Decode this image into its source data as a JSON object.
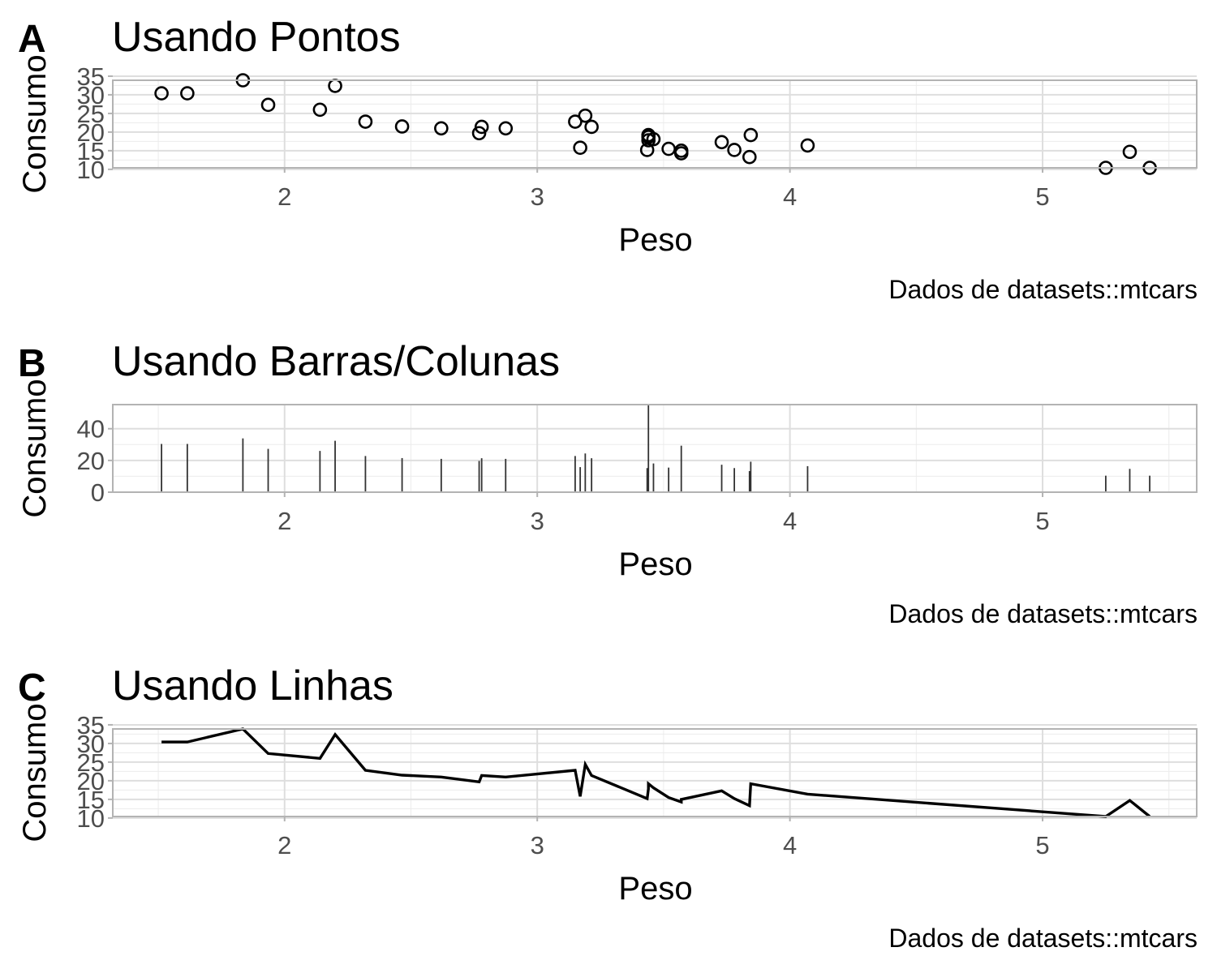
{
  "caption_text": "Dados de datasets::mtcars",
  "chart_data": [
    {
      "type": "scatter",
      "tag": "A",
      "title": "Usando Pontos",
      "xlabel": "Peso",
      "ylabel": "Consumo",
      "caption": "Dados de datasets::mtcars",
      "xlim": [
        1.32,
        5.61
      ],
      "ylim": [
        10.4,
        33.9
      ],
      "x_ticks": [
        2,
        3,
        4,
        5
      ],
      "y_ticks": [
        10,
        15,
        20,
        25,
        30,
        35
      ],
      "x": [
        2.62,
        2.875,
        2.32,
        3.215,
        3.44,
        3.46,
        3.57,
        3.19,
        3.15,
        3.44,
        3.44,
        4.07,
        3.73,
        3.78,
        5.25,
        5.424,
        5.345,
        2.2,
        1.615,
        1.835,
        2.465,
        3.52,
        3.435,
        3.84,
        3.845,
        1.935,
        2.14,
        1.513,
        3.17,
        2.77,
        3.57,
        2.78
      ],
      "y": [
        21.0,
        21.0,
        22.8,
        21.4,
        18.7,
        18.1,
        14.3,
        24.4,
        22.8,
        19.2,
        17.8,
        16.4,
        17.3,
        15.2,
        10.4,
        10.4,
        14.7,
        32.4,
        30.4,
        33.9,
        21.5,
        15.5,
        15.2,
        13.3,
        19.2,
        27.3,
        26.0,
        30.4,
        15.8,
        19.7,
        15.0,
        21.4
      ]
    },
    {
      "type": "bar",
      "tag": "B",
      "title": "Usando Barras/Colunas",
      "xlabel": "Peso",
      "ylabel": "Consumo",
      "caption": "Dados de datasets::mtcars",
      "xlim": [
        1.32,
        5.61
      ],
      "ylim": [
        0,
        55.2
      ],
      "x_ticks": [
        2,
        3,
        4,
        5
      ],
      "y_ticks": [
        0,
        20,
        40
      ],
      "x": [
        2.62,
        2.875,
        2.32,
        3.215,
        3.44,
        3.46,
        3.57,
        3.19,
        3.15,
        3.44,
        3.44,
        4.07,
        3.73,
        3.78,
        5.25,
        5.424,
        5.345,
        2.2,
        1.615,
        1.835,
        2.465,
        3.52,
        3.435,
        3.84,
        3.845,
        1.935,
        2.14,
        1.513,
        3.17,
        2.77,
        3.57,
        2.78
      ],
      "y": [
        21.0,
        21.0,
        22.8,
        21.4,
        18.7,
        18.1,
        14.3,
        24.4,
        22.8,
        19.2,
        17.8,
        16.4,
        17.3,
        15.2,
        10.4,
        10.4,
        14.7,
        32.4,
        30.4,
        33.9,
        21.5,
        15.5,
        15.2,
        13.3,
        19.2,
        27.3,
        26.0,
        30.4,
        15.8,
        19.7,
        15.0,
        21.4
      ]
    },
    {
      "type": "line",
      "tag": "C",
      "title": "Usando Linhas",
      "xlabel": "Peso",
      "ylabel": "Consumo",
      "caption": "Dados de datasets::mtcars",
      "xlim": [
        1.32,
        5.61
      ],
      "ylim": [
        10.4,
        33.9
      ],
      "x_ticks": [
        2,
        3,
        4,
        5
      ],
      "y_ticks": [
        10,
        15,
        20,
        25,
        30,
        35
      ],
      "x": [
        2.62,
        2.875,
        2.32,
        3.215,
        3.44,
        3.46,
        3.57,
        3.19,
        3.15,
        3.44,
        3.44,
        4.07,
        3.73,
        3.78,
        5.25,
        5.424,
        5.345,
        2.2,
        1.615,
        1.835,
        2.465,
        3.52,
        3.435,
        3.84,
        3.845,
        1.935,
        2.14,
        1.513,
        3.17,
        2.77,
        3.57,
        2.78
      ],
      "y": [
        21.0,
        21.0,
        22.8,
        21.4,
        18.7,
        18.1,
        14.3,
        24.4,
        22.8,
        19.2,
        17.8,
        16.4,
        17.3,
        15.2,
        10.4,
        10.4,
        14.7,
        32.4,
        30.4,
        33.9,
        21.5,
        15.5,
        15.2,
        13.3,
        19.2,
        27.3,
        26.0,
        30.4,
        15.8,
        19.7,
        15.0,
        21.4
      ]
    }
  ]
}
